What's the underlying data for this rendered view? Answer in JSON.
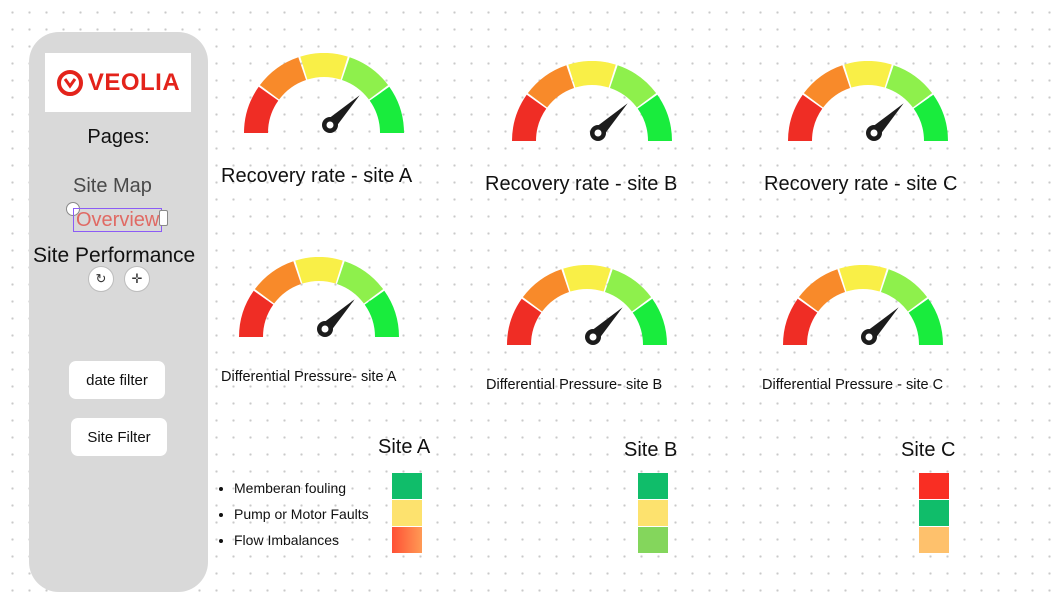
{
  "sidebar": {
    "logo_text": "VEOLIA",
    "pages_title": "Pages:",
    "nav": {
      "site_map": "Site Map",
      "overview": "Overview",
      "site_performance": "Site Performance"
    },
    "buttons": {
      "date_filter": "date filter",
      "site_filter": "Site Filter"
    }
  },
  "gauges": [
    {
      "label": "Recovery rate - site A",
      "level": 0.75
    },
    {
      "label": "Recovery rate - site  B",
      "level": 0.75
    },
    {
      "label": "Recovery rate - site C",
      "level": 0.75
    },
    {
      "label": "Differential Pressure- site A",
      "level": 0.75
    },
    {
      "label": "Differential Pressure- site  B",
      "level": 0.75
    },
    {
      "label": "Differential Pressure - site C",
      "level": 0.75
    }
  ],
  "gauge_colors": [
    "#ef2d25",
    "#f88a2a",
    "#f9ef47",
    "#8ef04c",
    "#19ec3d"
  ],
  "status": {
    "legend": [
      "Memberan fouling",
      "Pump or Motor Faults",
      "Flow Imbalances"
    ],
    "sites": [
      {
        "title": "Site A",
        "colors": [
          "#10bd6a",
          "#fde26e",
          "#ff5035"
        ]
      },
      {
        "title": "Site B",
        "colors": [
          "#10bd6a",
          "#fde26e",
          "#84d65c"
        ]
      },
      {
        "title": "Site C",
        "colors": [
          "#f92e23",
          "#10bd6a",
          "#fec16c"
        ]
      }
    ]
  }
}
